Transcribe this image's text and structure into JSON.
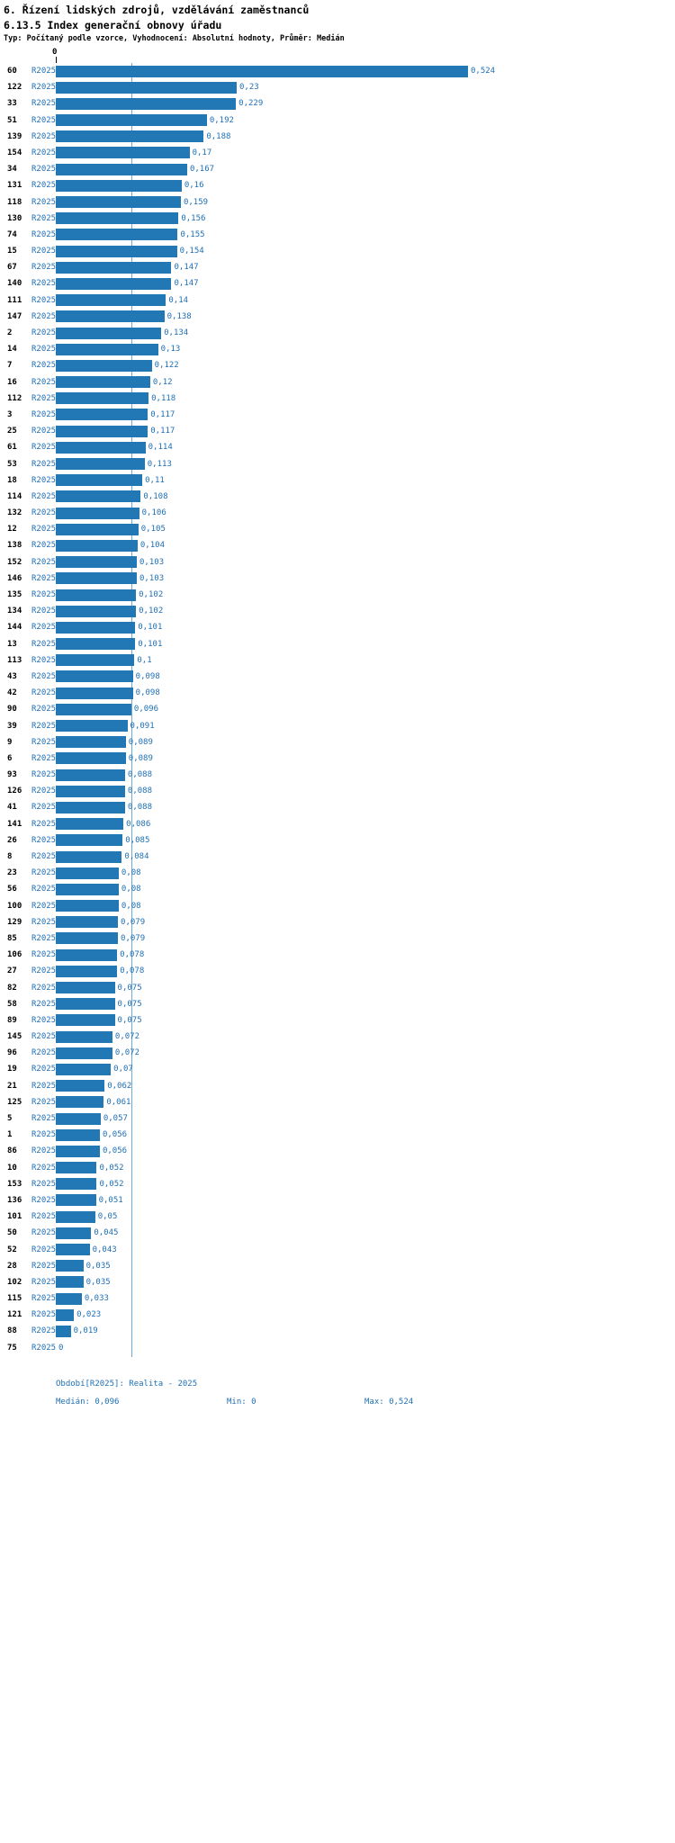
{
  "header": {
    "title": "6. Řízení lidských zdrojů, vzdělávání zaměstnanců",
    "subtitle": "6.13.5 Index generační obnovy úřadu",
    "meta": "Typ: Počítaný podle vzorce, Vyhodnocení: Absolutní hodnoty, Průměr: Medián"
  },
  "axis": {
    "zero_label": "0"
  },
  "colors": {
    "bar": "#2277b5",
    "value_text": "#1f6fb5",
    "median_line": "#6aabd8"
  },
  "chart_data": {
    "type": "bar",
    "orientation": "horizontal",
    "title": "6.13.5 Index generační obnovy úřadu",
    "series_label": "R2025",
    "xlim": [
      0,
      0.524
    ],
    "median": 0.096,
    "min": 0,
    "max": 0.524,
    "categories": [
      "60",
      "122",
      "33",
      "51",
      "139",
      "154",
      "34",
      "131",
      "118",
      "130",
      "74",
      "15",
      "67",
      "140",
      "111",
      "147",
      "2",
      "14",
      "7",
      "16",
      "112",
      "3",
      "25",
      "61",
      "53",
      "18",
      "114",
      "132",
      "12",
      "138",
      "152",
      "146",
      "135",
      "134",
      "144",
      "13",
      "113",
      "43",
      "42",
      "90",
      "39",
      "9",
      "6",
      "93",
      "126",
      "41",
      "141",
      "26",
      "8",
      "23",
      "56",
      "100",
      "129",
      "85",
      "106",
      "27",
      "82",
      "58",
      "89",
      "145",
      "96",
      "19",
      "21",
      "125",
      "5",
      "1",
      "86",
      "10",
      "153",
      "136",
      "101",
      "50",
      "52",
      "28",
      "102",
      "115",
      "121",
      "88",
      "75"
    ],
    "values": [
      0.524,
      0.23,
      0.229,
      0.192,
      0.188,
      0.17,
      0.167,
      0.16,
      0.159,
      0.156,
      0.155,
      0.154,
      0.147,
      0.147,
      0.14,
      0.138,
      0.134,
      0.13,
      0.122,
      0.12,
      0.118,
      0.117,
      0.117,
      0.114,
      0.113,
      0.11,
      0.108,
      0.106,
      0.105,
      0.104,
      0.103,
      0.103,
      0.102,
      0.102,
      0.101,
      0.101,
      0.1,
      0.098,
      0.098,
      0.096,
      0.091,
      0.089,
      0.089,
      0.088,
      0.088,
      0.088,
      0.086,
      0.085,
      0.084,
      0.08,
      0.08,
      0.08,
      0.079,
      0.079,
      0.078,
      0.078,
      0.075,
      0.075,
      0.075,
      0.072,
      0.072,
      0.07,
      0.062,
      0.061,
      0.057,
      0.056,
      0.056,
      0.052,
      0.052,
      0.051,
      0.05,
      0.045,
      0.043,
      0.035,
      0.035,
      0.033,
      0.023,
      0.019,
      0
    ],
    "value_labels": [
      "0,524",
      "0,23",
      "0,229",
      "0,192",
      "0,188",
      "0,17",
      "0,167",
      "0,16",
      "0,159",
      "0,156",
      "0,155",
      "0,154",
      "0,147",
      "0,147",
      "0,14",
      "0,138",
      "0,134",
      "0,13",
      "0,122",
      "0,12",
      "0,118",
      "0,117",
      "0,117",
      "0,114",
      "0,113",
      "0,11",
      "0,108",
      "0,106",
      "0,105",
      "0,104",
      "0,103",
      "0,103",
      "0,102",
      "0,102",
      "0,101",
      "0,101",
      "0,1",
      "0,098",
      "0,098",
      "0,096",
      "0,091",
      "0,089",
      "0,089",
      "0,088",
      "0,088",
      "0,088",
      "0,086",
      "0,085",
      "0,084",
      "0,08",
      "0,08",
      "0,08",
      "0,079",
      "0,079",
      "0,078",
      "0,078",
      "0,075",
      "0,075",
      "0,075",
      "0,072",
      "0,072",
      "0,07",
      "0,062",
      "0,061",
      "0,057",
      "0,056",
      "0,056",
      "0,052",
      "0,052",
      "0,051",
      "0,05",
      "0,045",
      "0,043",
      "0,035",
      "0,035",
      "0,033",
      "0,023",
      "0,019",
      "0"
    ]
  },
  "footer": {
    "period": "Období[R2025]: Realita - 2025",
    "median_label": "Medián: 0,096",
    "min_label": "Min: 0",
    "max_label": "Max: 0,524"
  }
}
